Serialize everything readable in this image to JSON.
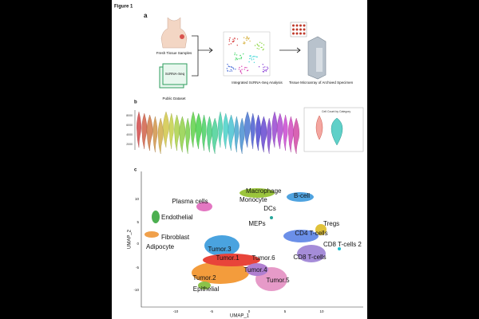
{
  "figure_label": "Figure 1",
  "panel_a": {
    "label": "a",
    "samples": "Fresh Tissue Samples",
    "box": "ScRNA-Seq",
    "dataset": "Public Dataset",
    "analysis": "Integrated ScRNA-Seq Analysis",
    "microarray": "Tissue Microarray of Archived Specimen"
  },
  "panel_b": {
    "label": "b",
    "yticks": [
      "8000",
      "6000",
      "4000",
      "2000"
    ],
    "inset_title": "Cell Count by Category"
  },
  "panel_c": {
    "label": "c",
    "xlabel": "UMAP_1",
    "ylabel": "UMAP_2",
    "xticks": [
      "-10",
      "-5",
      "0",
      "5",
      "10"
    ],
    "yticks": [
      "10",
      "5",
      "0",
      "-5",
      "-10"
    ],
    "clusters": [
      "Macrophage",
      "B-cell",
      "Plasma cells",
      "Monocyte",
      "DCs",
      "Endothelial",
      "MEPs",
      "Tregs",
      "CD4 T-cells",
      "Fibroblast",
      "CD8 T-cells 2",
      "Adipocyte",
      "Tumor.3",
      "CD8 T-cells",
      "Tumor.1",
      "Tumor.6",
      "Tumor.4",
      "Tumor.2",
      "Tumor.5",
      "Epithelial"
    ]
  }
}
